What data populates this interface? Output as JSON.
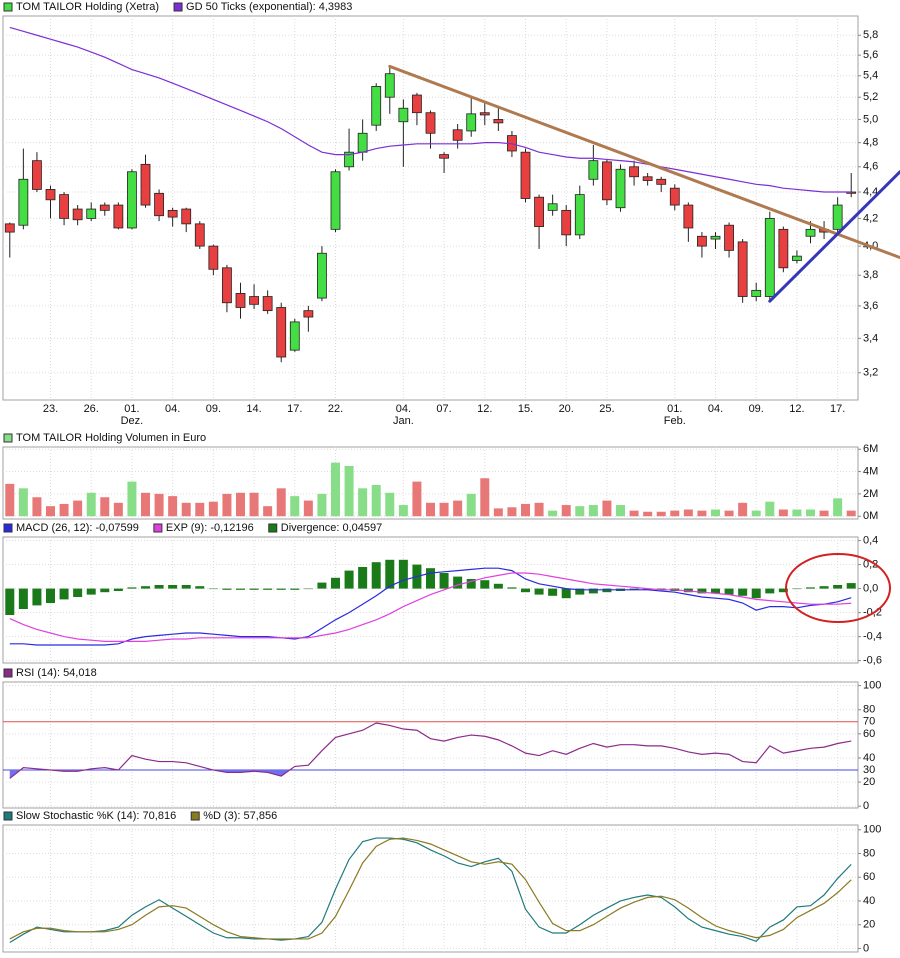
{
  "chart_data": [
    {
      "type": "candlestick",
      "log": true,
      "grid": true,
      "ylim": [
        3.05,
        6.0
      ],
      "yticks": [
        {
          "value": 3.2,
          "label": "3,2"
        },
        {
          "value": 3.4,
          "label": "3,4"
        },
        {
          "value": 3.6,
          "label": "3,6"
        },
        {
          "value": 3.8,
          "label": "3,8"
        },
        {
          "value": 4.0,
          "label": "4,0"
        },
        {
          "value": 4.2,
          "label": "4,2"
        },
        {
          "value": 4.4,
          "label": "4,4"
        },
        {
          "value": 4.6,
          "label": "4,6"
        },
        {
          "value": 4.8,
          "label": "4,8"
        },
        {
          "value": 5.0,
          "label": "5,0"
        },
        {
          "value": 5.2,
          "label": "5,2"
        },
        {
          "value": 5.4,
          "label": "5,4"
        },
        {
          "value": 5.6,
          "label": "5,6"
        },
        {
          "value": 5.8,
          "label": "5,8"
        }
      ],
      "categories": [
        null,
        null,
        null,
        "23.",
        null,
        null,
        "26.",
        null,
        null,
        "01.",
        null,
        null,
        "04.",
        null,
        null,
        "09.",
        null,
        null,
        "14.",
        null,
        null,
        "17.",
        null,
        null,
        "22.",
        null,
        null,
        null,
        null,
        "04.",
        null,
        null,
        "07.",
        null,
        null,
        "12.",
        null,
        null,
        "15.",
        null,
        null,
        "20.",
        null,
        null,
        "25.",
        null,
        null,
        null,
        null,
        "01.",
        null,
        null,
        "04.",
        null,
        null,
        "09.",
        null,
        null,
        "12.",
        null,
        null,
        "17.",
        null
      ],
      "months": [
        null,
        null,
        null,
        null,
        null,
        null,
        null,
        null,
        null,
        "Dez.",
        null,
        null,
        null,
        null,
        null,
        null,
        null,
        null,
        null,
        null,
        null,
        null,
        null,
        null,
        null,
        null,
        null,
        null,
        null,
        "Jan.",
        null,
        null,
        null,
        null,
        null,
        null,
        null,
        null,
        null,
        null,
        null,
        null,
        null,
        null,
        null,
        null,
        null,
        null,
        null,
        "Feb.",
        null,
        null,
        null,
        null,
        null,
        null,
        null,
        null,
        null,
        null,
        null,
        null,
        null
      ],
      "up_color": "#44dd44",
      "down_color": "#e84040",
      "series": [
        {
          "name": "TOM TAILOR Holding (Xetra)",
          "color": "#44dd44",
          "open": [
            4.16,
            4.15,
            4.65,
            4.42,
            4.38,
            4.27,
            4.2,
            4.3,
            4.3,
            4.13,
            4.62,
            4.39,
            4.26,
            4.27,
            4.16,
            4.0,
            3.85,
            3.68,
            3.66,
            3.66,
            3.59,
            3.33,
            3.57,
            3.65,
            4.12,
            4.6,
            4.72,
            4.95,
            5.2,
            4.98,
            5.22,
            5.06,
            4.7,
            4.91,
            4.9,
            5.06,
            5.0,
            4.86,
            4.72,
            4.36,
            4.26,
            4.26,
            4.08,
            4.5,
            4.64,
            4.28,
            4.6,
            4.52,
            4.5,
            4.43,
            4.3,
            4.07,
            4.05,
            4.15,
            4.03,
            3.66,
            3.66,
            4.12,
            3.9,
            4.07,
            4.12,
            4.12,
            4.4
          ],
          "high": [
            4.17,
            4.75,
            4.72,
            4.45,
            4.4,
            4.3,
            4.32,
            4.32,
            4.32,
            4.58,
            4.7,
            4.42,
            4.28,
            4.28,
            4.18,
            4.01,
            3.87,
            3.75,
            3.74,
            3.7,
            3.62,
            3.52,
            3.6,
            4.0,
            4.58,
            4.92,
            5.0,
            5.33,
            5.5,
            5.18,
            5.24,
            5.08,
            4.72,
            4.96,
            5.2,
            5.15,
            5.1,
            4.9,
            4.75,
            4.38,
            4.38,
            4.3,
            4.45,
            4.78,
            4.66,
            4.62,
            4.65,
            4.55,
            4.52,
            4.46,
            4.32,
            4.1,
            4.1,
            4.17,
            4.05,
            3.75,
            4.25,
            4.14,
            3.97,
            4.18,
            4.18,
            4.36,
            4.55
          ],
          "low": [
            3.92,
            4.12,
            4.4,
            4.2,
            4.15,
            4.15,
            4.18,
            4.22,
            4.12,
            4.12,
            4.28,
            4.18,
            4.14,
            4.1,
            3.98,
            3.8,
            3.56,
            3.52,
            3.58,
            3.55,
            3.26,
            3.32,
            3.44,
            3.63,
            4.1,
            4.57,
            4.65,
            4.9,
            5.05,
            4.6,
            4.95,
            4.75,
            4.55,
            4.75,
            4.85,
            4.95,
            4.9,
            4.68,
            4.32,
            3.98,
            4.22,
            4.0,
            4.05,
            4.45,
            4.3,
            4.25,
            4.45,
            4.45,
            4.4,
            4.26,
            4.03,
            3.92,
            3.98,
            3.92,
            3.62,
            3.63,
            3.63,
            3.82,
            3.88,
            4.02,
            4.05,
            4.1,
            4.36
          ],
          "close": [
            4.1,
            4.5,
            4.42,
            4.34,
            4.2,
            4.19,
            4.27,
            4.26,
            4.13,
            4.56,
            4.3,
            4.22,
            4.21,
            4.16,
            4.0,
            3.84,
            3.62,
            3.59,
            3.61,
            3.57,
            3.29,
            3.5,
            3.53,
            3.95,
            4.56,
            4.72,
            4.88,
            5.3,
            5.42,
            5.1,
            5.06,
            4.88,
            4.67,
            4.82,
            5.05,
            5.04,
            4.97,
            4.73,
            4.35,
            4.14,
            4.31,
            4.08,
            4.38,
            4.65,
            4.34,
            4.58,
            4.52,
            4.49,
            4.46,
            4.3,
            4.13,
            4.0,
            4.07,
            3.97,
            3.66,
            3.7,
            4.2,
            3.85,
            3.93,
            4.12,
            4.1,
            4.3,
            4.39
          ]
        },
        {
          "name": "GD 50 Ticks (exponential): 4,3983",
          "color": "#7b2fd6",
          "values": [
            5.88,
            5.84,
            5.8,
            5.76,
            5.72,
            5.68,
            5.63,
            5.58,
            5.52,
            5.46,
            5.42,
            5.38,
            5.33,
            5.28,
            5.23,
            5.18,
            5.13,
            5.08,
            5.03,
            4.98,
            4.92,
            4.85,
            4.78,
            4.72,
            4.7,
            4.7,
            4.72,
            4.75,
            4.77,
            4.78,
            4.79,
            4.79,
            4.79,
            4.79,
            4.79,
            4.8,
            4.8,
            4.79,
            4.76,
            4.72,
            4.7,
            4.68,
            4.67,
            4.67,
            4.66,
            4.65,
            4.64,
            4.62,
            4.6,
            4.58,
            4.56,
            4.54,
            4.52,
            4.5,
            4.48,
            4.46,
            4.45,
            4.43,
            4.42,
            4.41,
            4.4,
            4.4,
            4.4
          ]
        }
      ],
      "trendlines": [
        {
          "color": "#b07a50",
          "points": [
            [
              28,
              5.49
            ],
            [
              65.6,
              3.92
            ]
          ]
        },
        {
          "color": "#3636b8",
          "points": [
            [
              56,
              3.63
            ],
            [
              65.6,
              4.56
            ]
          ]
        }
      ]
    },
    {
      "type": "bar",
      "grid": true,
      "ylim": [
        -0.25,
        6.2
      ],
      "yticks": [
        {
          "value": 0,
          "label": "0M"
        },
        {
          "value": 2,
          "label": "2M"
        },
        {
          "value": 4,
          "label": "4M"
        },
        {
          "value": 6,
          "label": "6M"
        }
      ],
      "series": [
        {
          "name": "TOM TAILOR Holding Volumen in Euro",
          "color": "#88dd88",
          "down_color": "#e87878",
          "values": [
            2.9,
            2.5,
            1.7,
            0.9,
            1.1,
            1.4,
            2.1,
            1.7,
            1.2,
            3.1,
            2.1,
            2.0,
            1.8,
            1.2,
            1.2,
            1.3,
            2.0,
            2.1,
            2.1,
            0.9,
            2.5,
            1.8,
            1.4,
            2.0,
            4.8,
            4.5,
            2.5,
            2.8,
            2.1,
            1.0,
            3.1,
            1.2,
            1.2,
            1.4,
            2.0,
            3.4,
            0.7,
            0.8,
            1.1,
            1.2,
            0.5,
            1.0,
            0.9,
            1.0,
            1.4,
            1.0,
            0.5,
            0.4,
            0.4,
            0.5,
            0.6,
            0.5,
            0.6,
            0.5,
            1.2,
            0.5,
            1.3,
            0.6,
            0.6,
            0.6,
            0.5,
            1.6,
            0.5
          ]
        }
      ]
    },
    {
      "type": "combo",
      "grid": true,
      "ylim": [
        -0.62,
        0.43
      ],
      "yticks": [
        {
          "value": -0.6,
          "label": "-0,6"
        },
        {
          "value": -0.4,
          "label": "-0,4"
        },
        {
          "value": -0.2,
          "label": "-0,2"
        },
        {
          "value": 0.0,
          "label": "0,0"
        },
        {
          "value": 0.2,
          "label": "0,2"
        },
        {
          "value": 0.4,
          "label": "0,4"
        }
      ],
      "series": [
        {
          "name": "MACD (26, 12): -0,07599",
          "type": "line",
          "color": "#2a2ae0",
          "values": [
            -0.46,
            -0.46,
            -0.47,
            -0.47,
            -0.47,
            -0.47,
            -0.47,
            -0.47,
            -0.46,
            -0.42,
            -0.4,
            -0.39,
            -0.38,
            -0.37,
            -0.37,
            -0.38,
            -0.39,
            -0.4,
            -0.4,
            -0.4,
            -0.41,
            -0.42,
            -0.4,
            -0.33,
            -0.26,
            -0.2,
            -0.13,
            -0.06,
            0.02,
            0.07,
            0.1,
            0.13,
            0.14,
            0.15,
            0.16,
            0.17,
            0.17,
            0.15,
            0.08,
            0.04,
            0.02,
            0.0,
            -0.01,
            -0.01,
            -0.01,
            -0.01,
            -0.01,
            -0.01,
            -0.02,
            -0.03,
            -0.05,
            -0.07,
            -0.08,
            -0.09,
            -0.12,
            -0.18,
            -0.15,
            -0.15,
            -0.16,
            -0.14,
            -0.13,
            -0.11,
            -0.07599
          ]
        },
        {
          "name": "EXP (9): -0,12196",
          "type": "line",
          "color": "#e040e0",
          "values": [
            -0.25,
            -0.3,
            -0.34,
            -0.37,
            -0.4,
            -0.42,
            -0.43,
            -0.44,
            -0.44,
            -0.44,
            -0.44,
            -0.43,
            -0.42,
            -0.42,
            -0.41,
            -0.41,
            -0.41,
            -0.41,
            -0.41,
            -0.41,
            -0.41,
            -0.41,
            -0.41,
            -0.39,
            -0.37,
            -0.34,
            -0.3,
            -0.26,
            -0.21,
            -0.15,
            -0.1,
            -0.05,
            -0.01,
            0.03,
            0.06,
            0.09,
            0.11,
            0.13,
            0.13,
            0.12,
            0.1,
            0.08,
            0.06,
            0.04,
            0.03,
            0.02,
            0.01,
            0.0,
            -0.01,
            -0.01,
            -0.02,
            -0.03,
            -0.04,
            -0.05,
            -0.07,
            -0.09,
            -0.1,
            -0.11,
            -0.12,
            -0.13,
            -0.13,
            -0.13,
            -0.12196
          ]
        },
        {
          "name": "Divergence: 0,04597",
          "type": "bar",
          "color": "#1a7a1a",
          "values": [
            -0.22,
            -0.17,
            -0.14,
            -0.12,
            -0.09,
            -0.07,
            -0.05,
            -0.03,
            -0.02,
            0.01,
            0.02,
            0.03,
            0.03,
            0.03,
            0.02,
            0.0,
            -0.01,
            -0.01,
            -0.01,
            -0.01,
            -0.01,
            -0.01,
            0.0,
            0.05,
            0.09,
            0.15,
            0.18,
            0.22,
            0.24,
            0.24,
            0.2,
            0.17,
            0.13,
            0.1,
            0.08,
            0.07,
            0.04,
            0.01,
            -0.03,
            -0.05,
            -0.06,
            -0.08,
            -0.05,
            -0.04,
            -0.03,
            -0.02,
            -0.01,
            -0.01,
            -0.01,
            -0.02,
            -0.03,
            -0.04,
            -0.04,
            -0.05,
            -0.06,
            -0.08,
            -0.04,
            -0.03,
            0.0,
            0.01,
            0.02,
            0.03,
            0.04597
          ]
        }
      ]
    },
    {
      "type": "line",
      "grid": true,
      "ylim": [
        -1.5,
        103
      ],
      "yticks": [
        0,
        20,
        40,
        60,
        80,
        100
      ],
      "ref_lines": [
        {
          "value": 70,
          "color": "#e05050"
        },
        {
          "value": 30,
          "color": "#4444ee",
          "fill_color": "#7070ee"
        }
      ],
      "series": [
        {
          "name": "RSI (14): 54,018",
          "color": "#8b2a8b",
          "values": [
            23,
            32,
            31,
            30,
            29,
            29,
            31,
            32,
            30,
            42,
            39,
            37,
            37,
            36,
            33,
            30,
            28,
            28,
            29,
            28,
            25,
            33,
            34,
            46,
            57,
            60,
            63,
            69,
            67,
            64,
            63,
            56,
            54,
            57,
            59,
            58,
            55,
            50,
            44,
            42,
            46,
            43,
            48,
            52,
            49,
            51,
            51,
            50,
            50,
            48,
            45,
            43,
            44,
            43,
            37,
            36,
            50,
            44,
            46,
            48,
            49,
            52,
            54.018
          ]
        }
      ]
    },
    {
      "type": "line",
      "grid": true,
      "ylim": [
        -3,
        104
      ],
      "yticks": [
        0,
        20,
        40,
        60,
        80,
        100
      ],
      "series": [
        {
          "name": "Slow Stochastic %K (14): 70,816",
          "color": "#1f7a7a",
          "values": [
            5,
            12,
            18,
            16,
            14,
            14,
            14,
            15,
            18,
            28,
            35,
            41,
            34,
            27,
            20,
            13,
            9,
            9,
            8,
            8,
            7,
            8,
            10,
            22,
            50,
            75,
            90,
            93,
            93,
            92,
            89,
            83,
            78,
            72,
            69,
            73,
            76,
            65,
            33,
            18,
            13,
            13,
            20,
            28,
            34,
            40,
            43,
            45,
            43,
            35,
            25,
            18,
            15,
            12,
            10,
            6,
            18,
            24,
            35,
            36,
            45,
            59,
            70.816
          ]
        },
        {
          "name": "%D (3): 57,856",
          "color": "#8a7a20",
          "values": [
            8,
            14,
            17,
            17,
            15,
            14,
            14,
            14,
            16,
            20,
            28,
            35,
            36,
            34,
            27,
            20,
            14,
            10,
            9,
            8,
            8,
            8,
            8,
            13,
            27,
            49,
            72,
            86,
            92,
            93,
            91,
            88,
            83,
            78,
            73,
            71,
            73,
            71,
            58,
            39,
            21,
            15,
            15,
            20,
            27,
            34,
            39,
            43,
            44,
            41,
            34,
            26,
            19,
            15,
            12,
            9,
            11,
            16,
            26,
            32,
            38,
            47,
            57.856
          ]
        }
      ]
    }
  ]
}
